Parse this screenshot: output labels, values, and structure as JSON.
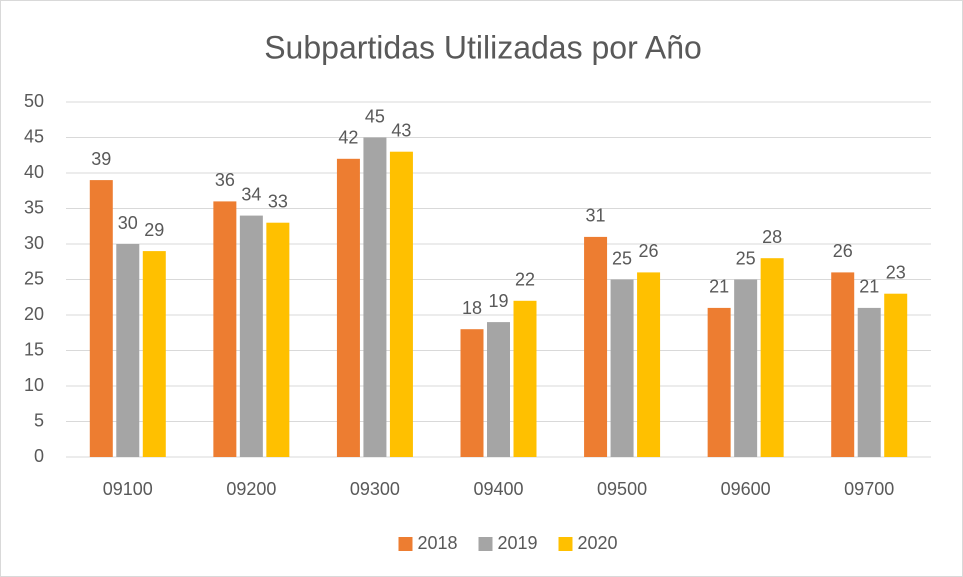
{
  "chart_data": {
    "type": "bar",
    "title": "Subpartidas Utilizadas por Año",
    "categories": [
      "09100",
      "09200",
      "09300",
      "09400",
      "09500",
      "09600",
      "09700"
    ],
    "series": [
      {
        "name": "2018",
        "color": "#ed7d31",
        "values": [
          39,
          36,
          42,
          18,
          31,
          21,
          26
        ]
      },
      {
        "name": "2019",
        "color": "#a5a5a5",
        "values": [
          30,
          34,
          45,
          19,
          25,
          25,
          21
        ]
      },
      {
        "name": "2020",
        "color": "#ffc000",
        "values": [
          29,
          33,
          43,
          22,
          26,
          28,
          23
        ]
      }
    ],
    "ylim": [
      0,
      50
    ],
    "yticks": [
      0,
      5,
      10,
      15,
      20,
      25,
      30,
      35,
      40,
      45,
      50
    ],
    "grid": true,
    "legend": "bottom"
  }
}
